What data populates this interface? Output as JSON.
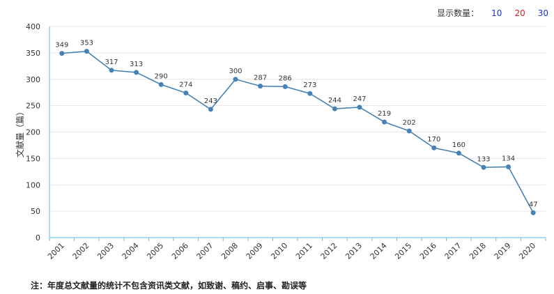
{
  "display_count": {
    "label": "显示数量：",
    "options": [
      "10",
      "20",
      "30"
    ]
  },
  "footnote": "注：年度总文献量的统计不包含资讯类文献，如致谢、稿约、启事、勘误等",
  "colors": {
    "line": "#4682b4",
    "axis": "#5bc0de",
    "grid": "#e6e6e6"
  },
  "chart_data": {
    "type": "line",
    "ylabel": "文献量（篇）",
    "ylim": [
      0,
      400
    ],
    "yticks": [
      0,
      50,
      100,
      150,
      200,
      250,
      300,
      350,
      400
    ],
    "categories": [
      "2001",
      "2002",
      "2003",
      "2004",
      "2005",
      "2006",
      "2007",
      "2008",
      "2009",
      "2010",
      "2011",
      "2012",
      "2013",
      "2014",
      "2015",
      "2016",
      "2017",
      "2018",
      "2019",
      "2020"
    ],
    "values": [
      349,
      353,
      317,
      313,
      290,
      274,
      243,
      300,
      287,
      286,
      273,
      244,
      247,
      219,
      202,
      170,
      160,
      133,
      134,
      47
    ],
    "grid": true
  }
}
